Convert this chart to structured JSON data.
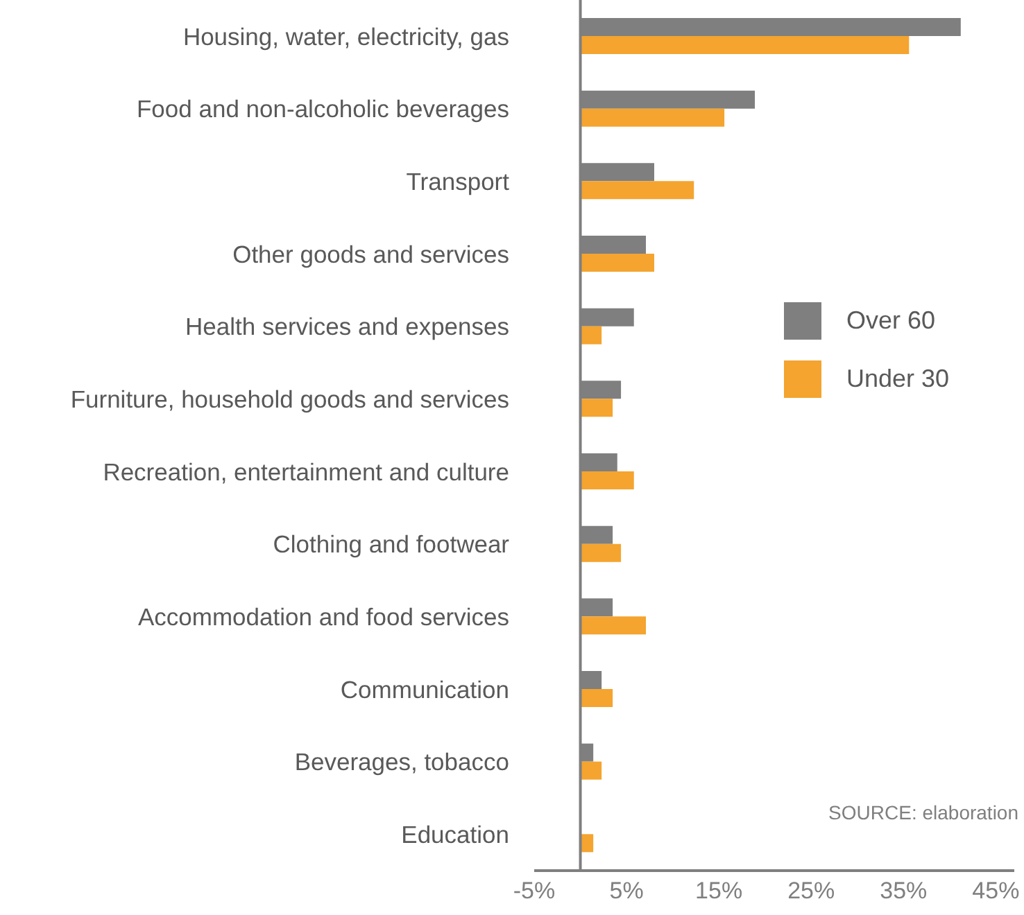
{
  "chart_data": {
    "type": "bar",
    "orientation": "horizontal",
    "categories": [
      "Housing, water, electricity, gas",
      "Food and non-alcoholic beverages",
      "Transport",
      "Other goods and services",
      "Health services and expenses",
      "Furniture, household goods and services",
      "Recreation, entertainment and culture",
      "Clothing and footwear",
      "Accommodation and food services",
      "Communication",
      "Beverages, tobacco",
      "Education"
    ],
    "series": [
      {
        "name": "Over 60",
        "color": "#7f7f7f",
        "values": [
          41.2,
          18.9,
          8.0,
          7.1,
          5.8,
          4.4,
          4.0,
          3.5,
          3.5,
          2.3,
          1.4,
          0
        ]
      },
      {
        "name": "Under 30",
        "color": "#f4a42f",
        "values": [
          35.6,
          15.6,
          12.3,
          8.0,
          2.3,
          3.5,
          5.8,
          4.4,
          7.1,
          3.5,
          2.3,
          1.4
        ]
      }
    ],
    "xlim": [
      -5,
      47
    ],
    "xticks": [
      {
        "value": -5,
        "label": "-5%"
      },
      {
        "value": 5,
        "label": "5%"
      },
      {
        "value": 15,
        "label": "15%"
      },
      {
        "value": 25,
        "label": "25%"
      },
      {
        "value": 35,
        "label": "35%"
      },
      {
        "value": 45,
        "label": "45%"
      }
    ],
    "ref_lines": [
      {
        "axis": "x",
        "value": 0,
        "color": "#7f7f7f"
      }
    ],
    "legend": "right",
    "grid": false,
    "annotations": [
      "SOURCE: elaboration"
    ]
  }
}
